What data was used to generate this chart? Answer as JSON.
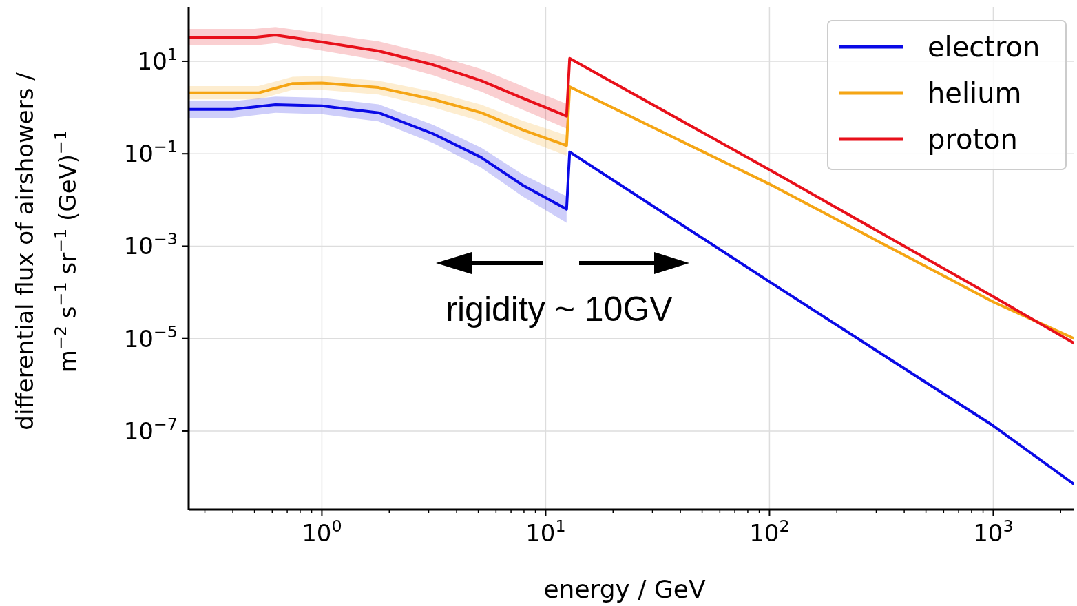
{
  "chart_data": {
    "type": "line",
    "xlabel": "energy / GeV",
    "ylabel": "differential flux of airshowers /\nm$^{−2}$ s$^{−1}$ sr$^{−1}$ (GeV)$^{−1}$",
    "log": "xy",
    "grid": true,
    "legend": "top right",
    "line_style": "solid",
    "marker": "none",
    "xlim": [
      0.254,
      2300
    ],
    "ylim": [
      2e-09,
      150
    ],
    "xticks": [
      {
        "value": 0.3,
        "label": null
      },
      {
        "value": 0.4,
        "label": null
      },
      {
        "value": 0.5,
        "label": null
      },
      {
        "value": 0.6,
        "label": null
      },
      {
        "value": 0.7,
        "label": null
      },
      {
        "value": 0.8,
        "label": null
      },
      {
        "value": 0.9,
        "label": null
      },
      {
        "value": 1,
        "label": "10$^{0}$"
      },
      {
        "value": 2,
        "label": null
      },
      {
        "value": 3,
        "label": null
      },
      {
        "value": 4,
        "label": null
      },
      {
        "value": 5,
        "label": null
      },
      {
        "value": 6,
        "label": null
      },
      {
        "value": 7,
        "label": null
      },
      {
        "value": 8,
        "label": null
      },
      {
        "value": 9,
        "label": null
      },
      {
        "value": 10,
        "label": "10$^{1}$"
      },
      {
        "value": 20,
        "label": null
      },
      {
        "value": 30,
        "label": null
      },
      {
        "value": 40,
        "label": null
      },
      {
        "value": 50,
        "label": null
      },
      {
        "value": 60,
        "label": null
      },
      {
        "value": 70,
        "label": null
      },
      {
        "value": 80,
        "label": null
      },
      {
        "value": 90,
        "label": null
      },
      {
        "value": 100,
        "label": "10$^{2}$"
      },
      {
        "value": 200,
        "label": null
      },
      {
        "value": 300,
        "label": null
      },
      {
        "value": 400,
        "label": null
      },
      {
        "value": 500,
        "label": null
      },
      {
        "value": 600,
        "label": null
      },
      {
        "value": 700,
        "label": null
      },
      {
        "value": 800,
        "label": null
      },
      {
        "value": 900,
        "label": null
      },
      {
        "value": 1000,
        "label": "10$^{3}$"
      },
      {
        "value": 2000,
        "label": null
      }
    ],
    "yticks": [
      {
        "value": 1e-07,
        "label": "10$^{−7}$"
      },
      {
        "value": 1e-05,
        "label": "10$^{−5}$"
      },
      {
        "value": 0.001,
        "label": "10$^{−3}$"
      },
      {
        "value": 0.1,
        "label": "10$^{−1}$"
      },
      {
        "value": 10,
        "label": "10$^{1}$"
      }
    ],
    "annotations": [
      "rigidity ~ 10GV"
    ],
    "series": [
      {
        "name": "electron",
        "color": "#0a0ae6",
        "x": [
          0.254,
          0.4,
          0.62,
          1,
          1.79,
          3.14,
          5.15,
          7.87,
          12.4,
          12.8,
          100,
          1000,
          2300
        ],
        "values": [
          0.91,
          0.91,
          1.15,
          1.08,
          0.77,
          0.27,
          0.083,
          0.021,
          0.0063,
          0.109,
          0.00017,
          1.3e-07,
          7e-09
        ],
        "lower": [
          0.6,
          0.6,
          0.77,
          0.72,
          0.5,
          0.17,
          0.05,
          0.012,
          0.0032,
          null,
          null,
          null,
          null
        ],
        "upper": [
          1.37,
          1.37,
          1.72,
          1.62,
          1.17,
          0.42,
          0.135,
          0.036,
          0.012,
          null,
          null,
          null,
          null
        ]
      },
      {
        "name": "helium",
        "color": "#f5a514",
        "x": [
          0.254,
          0.52,
          0.74,
          1,
          1.79,
          3.14,
          5.15,
          7.87,
          12.4,
          12.8,
          100,
          1000,
          2300
        ],
        "values": [
          2.07,
          2.07,
          3.3,
          3.4,
          2.7,
          1.5,
          0.77,
          0.33,
          0.15,
          2.8,
          0.022,
          6.2e-05,
          1e-05
        ],
        "lower": [
          1.5,
          1.5,
          2.4,
          2.4,
          1.9,
          1.0,
          0.5,
          0.21,
          0.09,
          null,
          null,
          null,
          null
        ],
        "upper": [
          2.9,
          2.9,
          4.6,
          4.8,
          3.8,
          2.2,
          1.15,
          0.52,
          0.25,
          null,
          null,
          null,
          null
        ]
      },
      {
        "name": "proton",
        "color": "#e8101a",
        "x": [
          0.254,
          0.5,
          0.62,
          1,
          1.79,
          3.14,
          5.15,
          7.87,
          12.4,
          12.8,
          100,
          1000,
          2300
        ],
        "values": [
          33,
          33,
          36.8,
          26,
          16.7,
          8.4,
          3.8,
          1.6,
          0.65,
          11.5,
          0.045,
          8.1e-05,
          7.9e-06
        ],
        "lower": [
          22,
          22,
          24.5,
          17,
          10.5,
          5.0,
          2.2,
          0.9,
          0.35,
          null,
          null,
          null,
          null
        ],
        "upper": [
          50,
          50,
          55,
          40,
          27,
          14,
          6.8,
          2.9,
          1.2,
          null,
          null,
          null,
          null
        ]
      }
    ]
  }
}
